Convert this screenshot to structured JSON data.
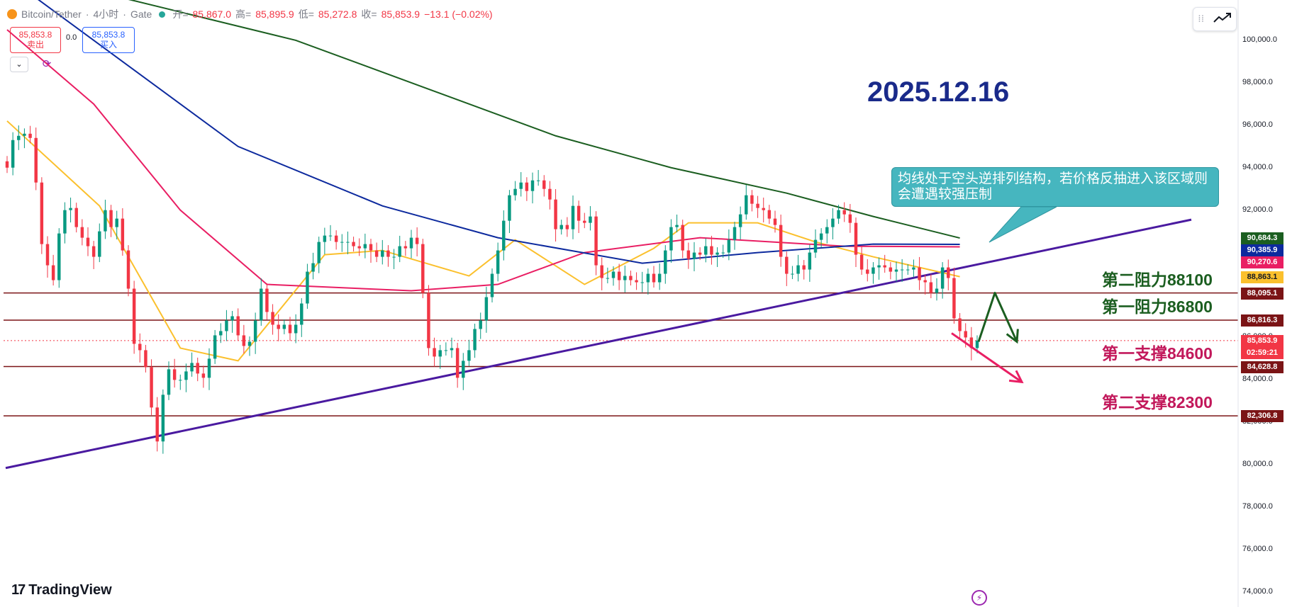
{
  "header": {
    "symbol": "Bitcoin/Tether",
    "interval": "4小时",
    "exchange": "Gate",
    "open_label": "开=",
    "open": "85,867.0",
    "high_label": "高=",
    "high": "85,895.9",
    "low_label": "低=",
    "low": "85,272.8",
    "close_label": "收=",
    "close": "85,853.9",
    "change": "−13.1 (−0.02%)"
  },
  "trade": {
    "sell_price": "85,853.8",
    "sell_label": "卖出",
    "spread": "0.0",
    "buy_price": "85,853.8",
    "buy_label": "买入",
    "collapse_icon": "chevron-down-icon",
    "refresh_icon": "refresh-icon"
  },
  "date_title": "2025.12.16",
  "annotation": "均线处于空头逆排列结构，若价格反抽进入该区域则会遭遇较强压制",
  "levels": [
    {
      "label": "第二阻力88100",
      "price": 88095.1,
      "color": "#1b5e20"
    },
    {
      "label": "第一阻力86800",
      "price": 86816.3,
      "color": "#1b5e20"
    },
    {
      "label": "第一支撑84600",
      "price": 84628.8,
      "color": "#c2185b"
    },
    {
      "label": "第二支撑82300",
      "price": 82306.8,
      "color": "#c2185b"
    }
  ],
  "price_labels": [
    {
      "text": "90,684.3",
      "price": 90684.3,
      "color": "#1b5e20"
    },
    {
      "text": "90,385.9",
      "price": 90385.9,
      "color": "#0d2a9e"
    },
    {
      "text": "90,270.6",
      "price": 90270.6,
      "color": "#e91e63"
    },
    {
      "text": "88,863.1",
      "price": 88863.1,
      "color": "#fbc02d"
    },
    {
      "text": "88,095.1",
      "price": 88095.1,
      "color": "#7b1416"
    },
    {
      "text": "86,816.3",
      "price": 86816.3,
      "color": "#7b1416"
    },
    {
      "text": "85,853.9",
      "price": 85853.9,
      "color": "#f23645"
    },
    {
      "text": "02:59:21",
      "price": 85853.9,
      "color": "#f23645"
    },
    {
      "text": "84,628.8",
      "price": 84628.8,
      "color": "#7b1416"
    },
    {
      "text": "82,306.8",
      "price": 82306.8,
      "color": "#7b1416"
    }
  ],
  "branding": "TradingView",
  "chart_data": {
    "type": "candlestick",
    "y_ticks": [
      "100,000.0",
      "98,000.0",
      "96,000.0",
      "94,000.0",
      "92,000.0",
      "90,000.0",
      "88,000.0",
      "86,000.0",
      "84,000.0",
      "82,000.0",
      "80,000.0",
      "78,000.0",
      "76,000.0",
      "74,000.0"
    ],
    "y_tick_values": [
      100000,
      98000,
      96000,
      94000,
      92000,
      90000,
      88000,
      86000,
      84000,
      82000,
      80000,
      78000,
      76000,
      74000
    ],
    "ylim": [
      73300,
      101900
    ],
    "up_color": "#089981",
    "down_color": "#f23645",
    "candles_close": [
      94000,
      95300,
      95500,
      95600,
      95400,
      93300,
      90400,
      89400,
      88700,
      90900,
      92000,
      92100,
      91200,
      90700,
      90300,
      89800,
      91000,
      92000,
      91200,
      91600,
      90100,
      88300,
      85700,
      85400,
      84600,
      82700,
      81100,
      83300,
      84500,
      84000,
      84000,
      84400,
      84800,
      84300,
      84100,
      85000,
      86100,
      86300,
      86800,
      87000,
      86100,
      85600,
      85800,
      86800,
      88300,
      87200,
      86600,
      86400,
      86600,
      86200,
      86600,
      87600,
      89100,
      89500,
      90500,
      90800,
      90800,
      90500,
      90500,
      90500,
      90300,
      90200,
      90400,
      90100,
      89800,
      90100,
      89800,
      89800,
      90300,
      90200,
      90700,
      90400,
      88100,
      85500,
      85100,
      85400,
      85400,
      85500,
      84100,
      84900,
      85400,
      86400,
      86800,
      87900,
      89000,
      90100,
      91500,
      92700,
      93000,
      93300,
      92900,
      93400,
      93400,
      93000,
      92500,
      91100,
      91300,
      91100,
      92200,
      91500,
      91400,
      91700,
      89400,
      88800,
      88800,
      89100,
      88700,
      88900,
      88700,
      88600,
      88600,
      89000,
      88600,
      89000,
      90100,
      91200,
      91300,
      90100,
      89700,
      90000,
      89900,
      90300,
      89900,
      90000,
      90000,
      90600,
      91200,
      91800,
      92700,
      92300,
      92100,
      92000,
      91600,
      91300,
      89800,
      89000,
      89000,
      89400,
      89200,
      90000,
      90600,
      90900,
      91200,
      91600,
      92000,
      91800,
      91400,
      89900,
      89200,
      89000,
      89300,
      89400,
      89300,
      89100,
      89200,
      89200,
      89200,
      89300,
      88700,
      88600,
      88100,
      88300,
      89300,
      88800,
      86900,
      86300,
      86000,
      85500,
      85850
    ],
    "ma_lines": [
      {
        "color": "#fbc02d",
        "points": [
          [
            0,
            96200
          ],
          [
            16,
            92200
          ],
          [
            30,
            85500
          ],
          [
            40,
            84900
          ],
          [
            55,
            89900
          ],
          [
            65,
            90100
          ],
          [
            80,
            88900
          ],
          [
            88,
            90600
          ],
          [
            100,
            88500
          ],
          [
            112,
            90200
          ],
          [
            118,
            91400
          ],
          [
            130,
            91400
          ],
          [
            140,
            90500
          ],
          [
            150,
            89800
          ],
          [
            165,
            88863
          ]
        ]
      },
      {
        "color": "#e91e63",
        "points": [
          [
            0,
            100500
          ],
          [
            15,
            97000
          ],
          [
            30,
            92000
          ],
          [
            45,
            88500
          ],
          [
            70,
            88200
          ],
          [
            85,
            88500
          ],
          [
            100,
            90000
          ],
          [
            120,
            90700
          ],
          [
            145,
            90300
          ],
          [
            165,
            90270
          ]
        ]
      },
      {
        "color": "#0d2a9e",
        "points": [
          [
            5,
            102000
          ],
          [
            20,
            99000
          ],
          [
            40,
            95000
          ],
          [
            65,
            92200
          ],
          [
            85,
            90700
          ],
          [
            110,
            89500
          ],
          [
            130,
            90000
          ],
          [
            150,
            90400
          ],
          [
            165,
            90386
          ]
        ]
      },
      {
        "color": "#1b5e20",
        "points": [
          [
            20,
            102000
          ],
          [
            50,
            100000
          ],
          [
            75,
            97500
          ],
          [
            95,
            95500
          ],
          [
            115,
            94000
          ],
          [
            135,
            92800
          ],
          [
            150,
            91700
          ],
          [
            165,
            90684
          ]
        ]
      }
    ],
    "trendline": {
      "from": [
        0,
        79850
      ],
      "to": [
        1680,
        91550
      ]
    },
    "arrows": [
      {
        "color": "#1b5e20",
        "path": [
          [
            1380,
            85800
          ],
          [
            1403,
            88100
          ],
          [
            1434,
            85800
          ]
        ]
      },
      {
        "color": "#e91e63",
        "path": [
          [
            1342,
            86200
          ],
          [
            1441,
            83900
          ]
        ]
      }
    ]
  }
}
